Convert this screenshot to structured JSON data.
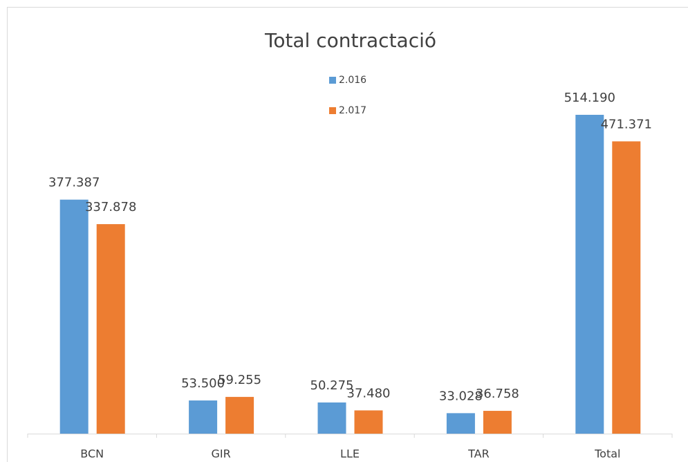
{
  "chart_data": {
    "type": "bar",
    "title": "Total contractació",
    "categories": [
      "BCN",
      "GIR",
      "LLE",
      "TAR",
      "Total"
    ],
    "series": [
      {
        "name": "2.016",
        "color": "#5b9bd5",
        "values": [
          377387,
          53500,
          50275,
          33028,
          514190
        ],
        "value_labels": [
          "377.387",
          "53.500",
          "50.275",
          "33.028",
          "514.190"
        ]
      },
      {
        "name": "2.017",
        "color": "#ed7d31",
        "values": [
          337878,
          59255,
          37480,
          36758,
          471371
        ],
        "value_labels": [
          "337.878",
          "59.255",
          "37.480",
          "36.758",
          "471.371"
        ]
      }
    ],
    "legend": "top"
  }
}
